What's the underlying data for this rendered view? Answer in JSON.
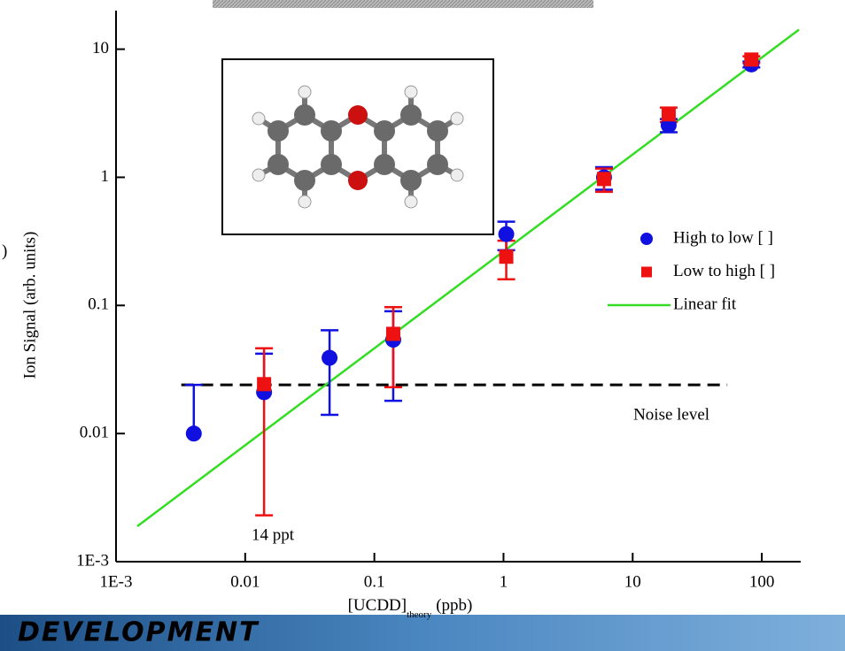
{
  "chart_data": {
    "type": "scatter",
    "x_label": "[UCDD]",
    "x_label_sub": "theory",
    "x_label_unit": "(ppb)",
    "y_label": "Ion Signal (arb. units)",
    "log_x": true,
    "log_y": true,
    "xlim": [
      0.001,
      200
    ],
    "ylim": [
      0.001,
      20
    ],
    "xticks": [
      {
        "value": 0.001,
        "label": "1E-3"
      },
      0.01,
      0.1,
      1,
      10,
      100
    ],
    "yticks": [
      {
        "value": 0.001,
        "label": "1E-3"
      },
      0.01,
      0.1,
      1,
      10
    ],
    "legend": "right",
    "series": [
      {
        "name": "High to low [ ]",
        "color": "#1010e0",
        "marker": "circle",
        "x": [
          0.004,
          0.014,
          0.045,
          0.14,
          1.05,
          6,
          19,
          83
        ],
        "values": [
          0.01,
          0.021,
          0.039,
          0.054,
          0.36,
          1.0,
          2.55,
          7.6
        ],
        "errors": [
          0.014,
          0.021,
          0.025,
          0.036,
          0.09,
          0.2,
          0.3,
          0.4
        ]
      },
      {
        "name": "Low to high [ ]",
        "color": "#ee1111",
        "marker": "square",
        "x": [
          0.014,
          0.14,
          1.05,
          6,
          19,
          83
        ],
        "values": [
          0.0243,
          0.06,
          0.24,
          0.97,
          3.1,
          8.3
        ],
        "errors": [
          0.022,
          0.037,
          0.08,
          0.2,
          0.4,
          0.5
        ]
      },
      {
        "name": "Linear fit",
        "color": "#33dd22",
        "marker": "line",
        "x": [
          0.00146,
          194
        ],
        "values": [
          0.00189,
          14.2
        ]
      }
    ],
    "reference_line": {
      "label": "Noise level",
      "value": 0.024,
      "x": [
        0.0032,
        54
      ]
    },
    "annotations": [
      {
        "text": "14 ppt"
      }
    ],
    "cropped_text": ")"
  },
  "banner": {
    "text": "DEVELOPMENT"
  }
}
